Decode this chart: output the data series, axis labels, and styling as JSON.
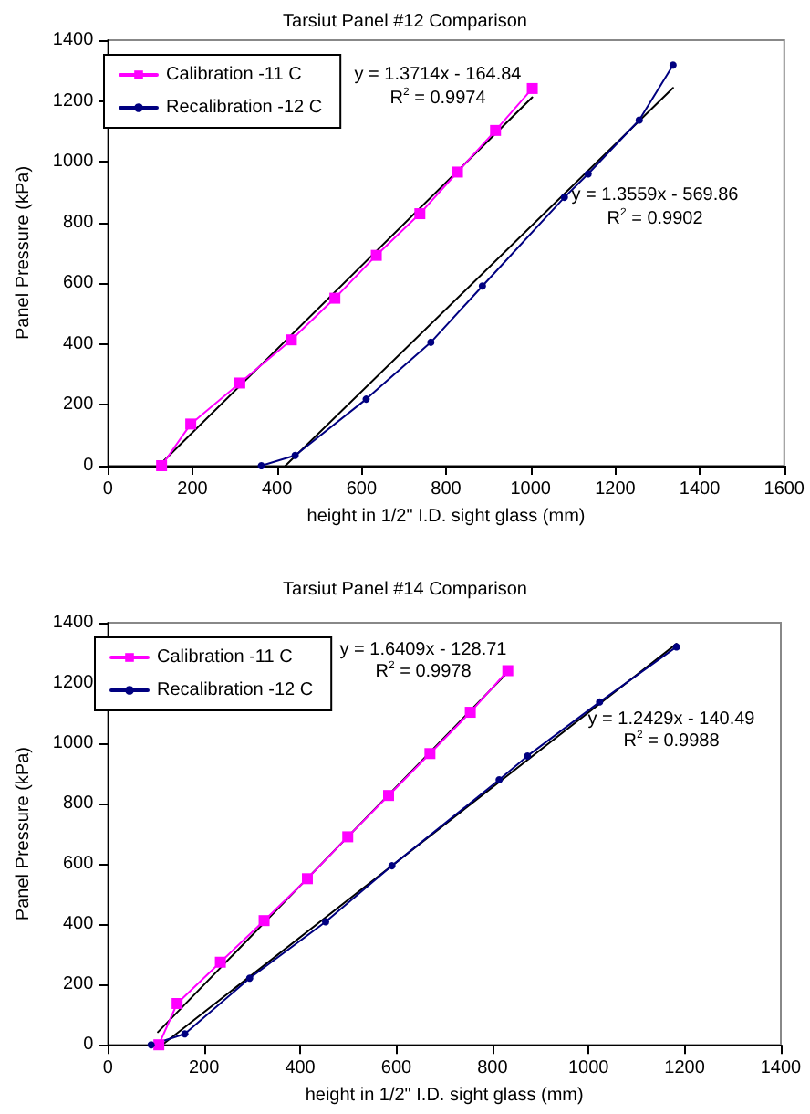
{
  "chart_data": [
    {
      "type": "line",
      "title": "Tarsiut Panel #12 Comparison",
      "xlabel": "height in 1/2\" I.D. sight glass (mm)",
      "ylabel": "Panel Pressure (kPa)",
      "xlim": [
        0,
        1600
      ],
      "xticks": [
        0,
        200,
        400,
        600,
        800,
        1000,
        1200,
        1400,
        1600
      ],
      "ylim": [
        0,
        1400
      ],
      "yticks": [
        0,
        200,
        400,
        600,
        800,
        1000,
        1200,
        1400
      ],
      "grid": false,
      "legend": "top left",
      "series": [
        {
          "name": "Calibration -11 C",
          "color": "#ff00ff",
          "marker": "square",
          "x": [
            127,
            196,
            312,
            434,
            537,
            635,
            738,
            827,
            917,
            1004
          ],
          "values": [
            0,
            137,
            272,
            414,
            551,
            692,
            829,
            966,
            1103,
            1241
          ]
        },
        {
          "name": "Recalibration -12 C",
          "color": "#000080",
          "marker": "circle",
          "x": [
            363,
            443,
            611,
            764,
            886,
            1080,
            1136,
            1257,
            1337
          ],
          "values": [
            0,
            34,
            219,
            406,
            591,
            883,
            960,
            1137,
            1318
          ]
        },
        {
          "color": "#000000",
          "marker": "none",
          "x": [
            127,
            1004
          ],
          "values": [
            9,
            1212
          ]
        },
        {
          "color": "#000000",
          "marker": "none",
          "x": [
            420,
            1337
          ],
          "values": [
            0,
            1243
          ]
        }
      ],
      "annotations": [
        "y = 1.3714x - 164.84",
        "R$^{2}$ = 0.9974",
        "y = 1.3559x - 569.86",
        "R$^{2}$ = 0.9902"
      ]
    },
    {
      "type": "line",
      "title": "Tarsiut Panel #14 Comparison",
      "xlabel": "height in 1/2\" I.D. sight glass (mm)",
      "ylabel": "Panel Pressure (kPa)",
      "xlim": [
        0,
        1400
      ],
      "xticks": [
        0,
        200,
        400,
        600,
        800,
        1000,
        1200,
        1400
      ],
      "ylim": [
        0,
        1400
      ],
      "yticks": [
        0,
        200,
        400,
        600,
        800,
        1000,
        1200,
        1400
      ],
      "grid": false,
      "legend": "top left",
      "series": [
        {
          "name": "Calibration -11 C",
          "color": "#ff00ff",
          "marker": "square",
          "x": [
            106,
            144,
            234,
            325,
            415,
            499,
            584,
            670,
            754,
            832
          ],
          "values": [
            0,
            137,
            274,
            412,
            551,
            690,
            827,
            966,
            1103,
            1241
          ]
        },
        {
          "name": "Recalibration -12 C",
          "color": "#000080",
          "marker": "circle",
          "x": [
            90,
            160,
            295,
            453,
            591,
            814,
            873,
            1023,
            1183
          ],
          "values": [
            0,
            36,
            221,
            408,
            594,
            879,
            958,
            1137,
            1320
          ]
        },
        {
          "color": "#000000",
          "marker": "none",
          "x": [
            104,
            832
          ],
          "values": [
            42,
            1236
          ]
        },
        {
          "color": "#000000",
          "marker": "none",
          "x": [
            113,
            1183
          ],
          "values": [
            0,
            1330
          ]
        }
      ],
      "annotations": [
        "y = 1.6409x - 128.71",
        "R$^{2}$ = 0.9978",
        "y = 1.2429x - 140.49",
        "R$^{2}$ = 0.9988"
      ]
    }
  ]
}
